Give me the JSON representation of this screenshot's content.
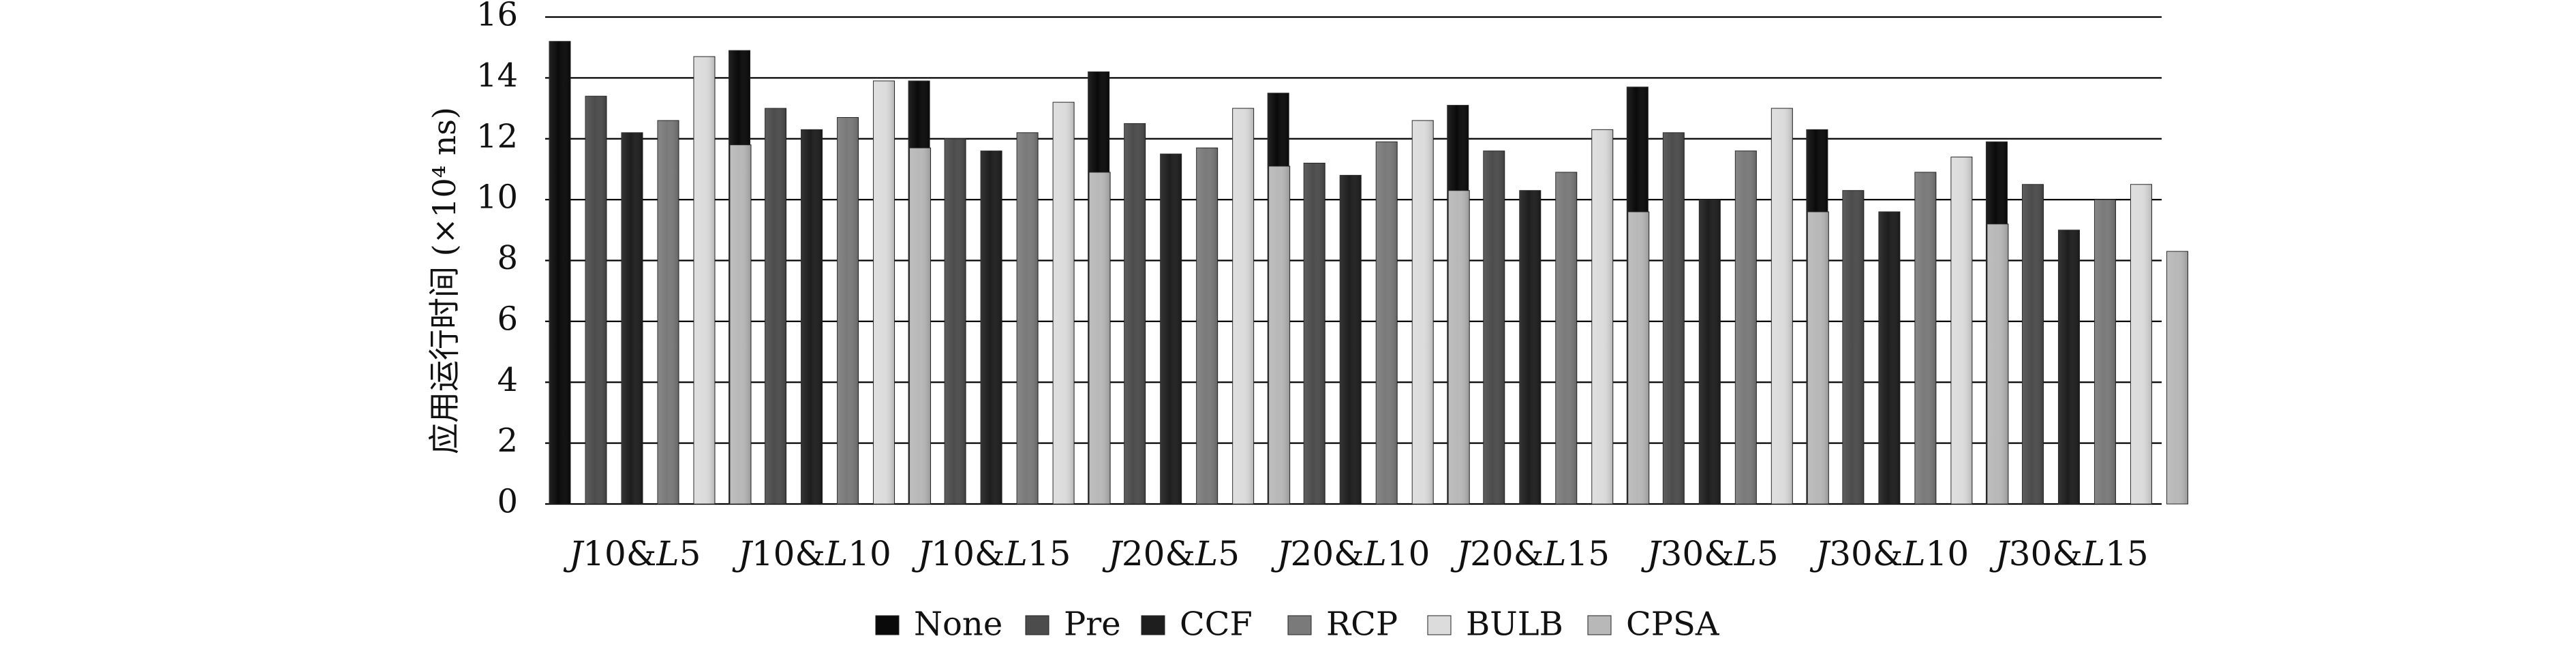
{
  "chart_data": {
    "type": "bar",
    "title": "",
    "ylabel": "应用运行时间 (×10⁴ ns)",
    "xlabel": "",
    "ylim": [
      0,
      16
    ],
    "yticks": [
      0,
      2,
      4,
      6,
      8,
      10,
      12,
      14,
      16
    ],
    "ytick_labels": [
      "0",
      "2",
      "4",
      "6",
      "8",
      "10",
      "12",
      "14",
      "16"
    ],
    "grid": "horizontal",
    "legend_position": "bottom",
    "categories": [
      "J10&L5",
      "J10&L10",
      "J10&L15",
      "J20&L5",
      "J20&L10",
      "J20&L15",
      "J30&L5",
      "J30&L10",
      "J30&L15"
    ],
    "series": [
      {
        "name": "None",
        "color": "#0a0a0a",
        "values": [
          15.2,
          14.9,
          13.9,
          14.2,
          13.5,
          13.1,
          13.7,
          12.3,
          11.9
        ]
      },
      {
        "name": "Pre",
        "color": "#4c4c4c",
        "values": [
          13.4,
          13.0,
          12.0,
          12.5,
          11.2,
          11.6,
          12.2,
          10.3,
          10.5
        ]
      },
      {
        "name": "CCF",
        "color": "#1e1e1e",
        "values": [
          12.2,
          12.3,
          11.6,
          11.5,
          10.8,
          10.3,
          10.0,
          9.6,
          9.0
        ]
      },
      {
        "name": "RCP",
        "color": "#7a7a7a",
        "values": [
          12.6,
          12.7,
          12.2,
          11.7,
          11.9,
          10.9,
          11.6,
          10.9,
          10.0
        ]
      },
      {
        "name": "BULB",
        "color": "#dcdcdc",
        "values": [
          14.7,
          13.9,
          13.2,
          13.0,
          12.6,
          12.3,
          13.0,
          11.4,
          10.5
        ]
      },
      {
        "name": "CPSA",
        "color": "#b8b8b8",
        "values": [
          11.8,
          11.7,
          10.9,
          11.1,
          10.3,
          9.6,
          9.6,
          9.2,
          8.3
        ]
      }
    ]
  }
}
